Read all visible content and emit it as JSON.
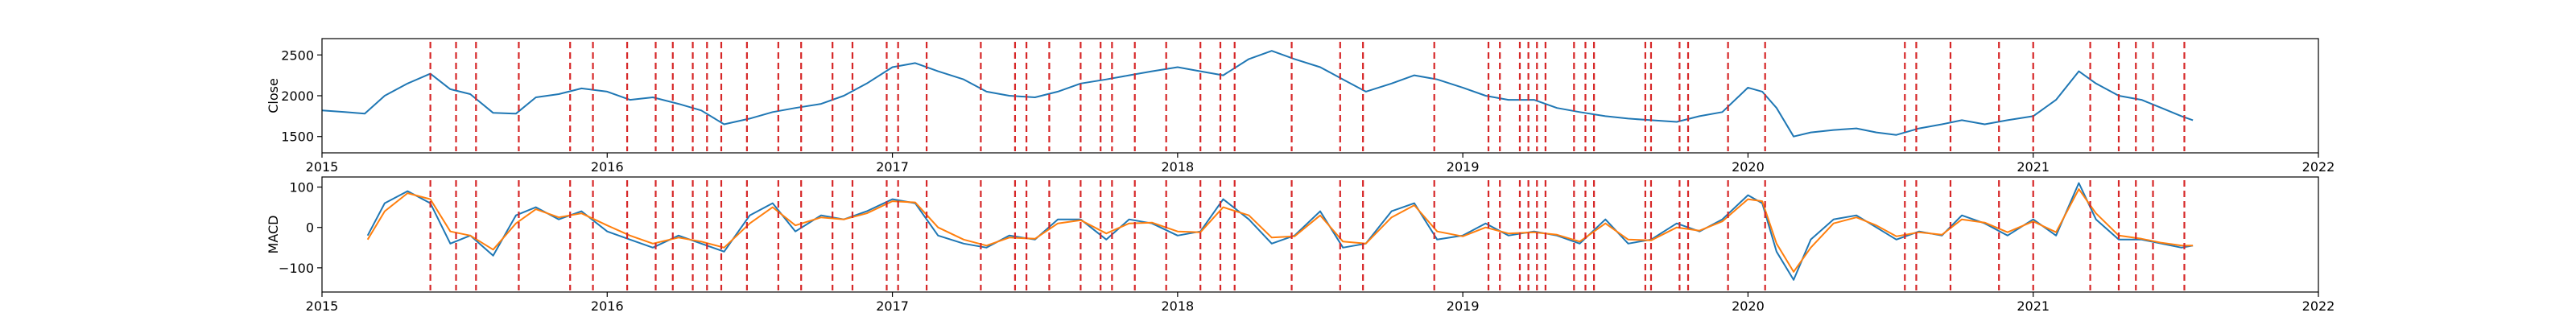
{
  "chart_data": [
    {
      "type": "line",
      "ylabel": "Close",
      "xlim": [
        2015.0,
        2022.0
      ],
      "ylim": [
        1300,
        2700
      ],
      "xticks": [
        2015,
        2016,
        2017,
        2018,
        2019,
        2020,
        2021,
        2022
      ],
      "xtick_labels": [
        "2015",
        "2016",
        "2017",
        "2018",
        "2019",
        "2020",
        "2021",
        "2022"
      ],
      "yticks": [
        1500,
        2000,
        2500
      ],
      "ytick_labels": [
        "1500",
        "2000",
        "2500"
      ],
      "grid": false,
      "series": [
        {
          "color": "#1f77b4",
          "x": [
            2015.0,
            2015.08,
            2015.15,
            2015.22,
            2015.3,
            2015.38,
            2015.45,
            2015.52,
            2015.6,
            2015.68,
            2015.75,
            2015.83,
            2015.91,
            2016.0,
            2016.08,
            2016.16,
            2016.25,
            2016.33,
            2016.41,
            2016.5,
            2016.58,
            2016.66,
            2016.75,
            2016.83,
            2016.91,
            2017.0,
            2017.08,
            2017.16,
            2017.25,
            2017.33,
            2017.41,
            2017.5,
            2017.58,
            2017.66,
            2017.75,
            2017.83,
            2017.91,
            2018.0,
            2018.08,
            2018.16,
            2018.25,
            2018.33,
            2018.41,
            2018.5,
            2018.58,
            2018.66,
            2018.75,
            2018.83,
            2018.91,
            2019.0,
            2019.08,
            2019.16,
            2019.25,
            2019.33,
            2019.41,
            2019.5,
            2019.58,
            2019.66,
            2019.75,
            2019.83,
            2019.91,
            2020.0,
            2020.05,
            2020.1,
            2020.16,
            2020.22,
            2020.3,
            2020.38,
            2020.45,
            2020.52,
            2020.6,
            2020.68,
            2020.75,
            2020.83,
            2020.91,
            2021.0,
            2021.08,
            2021.16,
            2021.22,
            2021.3,
            2021.38,
            2021.45,
            2021.52,
            2021.56
          ],
          "values": [
            1820,
            1800,
            1780,
            2000,
            2150,
            2270,
            2080,
            2020,
            1790,
            1780,
            1980,
            2020,
            2090,
            2050,
            1950,
            1980,
            1900,
            1820,
            1650,
            1720,
            1800,
            1850,
            1900,
            2000,
            2150,
            2350,
            2400,
            2300,
            2200,
            2050,
            2000,
            1980,
            2050,
            2150,
            2200,
            2250,
            2300,
            2350,
            2300,
            2250,
            2450,
            2550,
            2450,
            2350,
            2200,
            2050,
            2150,
            2250,
            2200,
            2100,
            2000,
            1950,
            1950,
            1850,
            1800,
            1750,
            1720,
            1700,
            1680,
            1750,
            1800,
            2100,
            2050,
            1850,
            1500,
            1550,
            1580,
            1600,
            1550,
            1520,
            1600,
            1650,
            1700,
            1650,
            1700,
            1750,
            1950,
            2300,
            2150,
            2000,
            1950,
            1850,
            1750,
            1700
          ]
        }
      ],
      "vlines_color": "#d62728"
    },
    {
      "type": "line",
      "ylabel": "MACD",
      "xlim": [
        2015.0,
        2022.0
      ],
      "ylim": [
        -160,
        125
      ],
      "xticks": [
        2015,
        2016,
        2017,
        2018,
        2019,
        2020,
        2021,
        2022
      ],
      "xtick_labels": [
        "2015",
        "2016",
        "2017",
        "2018",
        "2019",
        "2020",
        "2021",
        "2022"
      ],
      "yticks": [
        -100,
        0,
        100
      ],
      "ytick_labels": [
        "−100",
        "0",
        "100"
      ],
      "grid": false,
      "series": [
        {
          "color": "#1f77b4",
          "x": [
            2015.16,
            2015.22,
            2015.3,
            2015.38,
            2015.45,
            2015.52,
            2015.6,
            2015.68,
            2015.75,
            2015.83,
            2015.91,
            2016.0,
            2016.08,
            2016.16,
            2016.25,
            2016.33,
            2016.41,
            2016.5,
            2016.58,
            2016.66,
            2016.75,
            2016.83,
            2016.91,
            2017.0,
            2017.08,
            2017.16,
            2017.25,
            2017.33,
            2017.41,
            2017.5,
            2017.58,
            2017.66,
            2017.75,
            2017.83,
            2017.91,
            2018.0,
            2018.08,
            2018.16,
            2018.25,
            2018.33,
            2018.41,
            2018.5,
            2018.58,
            2018.66,
            2018.75,
            2018.83,
            2018.91,
            2019.0,
            2019.08,
            2019.16,
            2019.25,
            2019.33,
            2019.41,
            2019.5,
            2019.58,
            2019.66,
            2019.75,
            2019.83,
            2019.91,
            2020.0,
            2020.05,
            2020.1,
            2020.16,
            2020.22,
            2020.3,
            2020.38,
            2020.45,
            2020.52,
            2020.6,
            2020.68,
            2020.75,
            2020.83,
            2020.91,
            2021.0,
            2021.08,
            2021.16,
            2021.22,
            2021.3,
            2021.38,
            2021.45,
            2021.52,
            2021.56
          ],
          "values": [
            -20,
            60,
            90,
            60,
            -40,
            -20,
            -70,
            30,
            50,
            20,
            40,
            -10,
            -30,
            -50,
            -20,
            -40,
            -60,
            30,
            60,
            -10,
            30,
            20,
            40,
            70,
            60,
            -20,
            -40,
            -50,
            -20,
            -30,
            20,
            20,
            -30,
            20,
            10,
            -20,
            -10,
            70,
            20,
            -40,
            -20,
            40,
            -50,
            -40,
            40,
            60,
            -30,
            -20,
            10,
            -20,
            -10,
            -20,
            -40,
            20,
            -40,
            -30,
            10,
            -10,
            20,
            80,
            60,
            -60,
            -130,
            -30,
            20,
            30,
            0,
            -30,
            -10,
            -20,
            30,
            10,
            -20,
            20,
            -20,
            110,
            20,
            -30,
            -30,
            -40,
            -50,
            -45
          ]
        },
        {
          "color": "#ff7f0e",
          "x": [
            2015.16,
            2015.22,
            2015.3,
            2015.38,
            2015.45,
            2015.52,
            2015.6,
            2015.68,
            2015.75,
            2015.83,
            2015.91,
            2016.0,
            2016.08,
            2016.16,
            2016.25,
            2016.33,
            2016.41,
            2016.5,
            2016.58,
            2016.66,
            2016.75,
            2016.83,
            2016.91,
            2017.0,
            2017.08,
            2017.16,
            2017.25,
            2017.33,
            2017.41,
            2017.5,
            2017.58,
            2017.66,
            2017.75,
            2017.83,
            2017.91,
            2018.0,
            2018.08,
            2018.16,
            2018.25,
            2018.33,
            2018.41,
            2018.5,
            2018.58,
            2018.66,
            2018.75,
            2018.83,
            2018.91,
            2019.0,
            2019.08,
            2019.16,
            2019.25,
            2019.33,
            2019.41,
            2019.5,
            2019.58,
            2019.66,
            2019.75,
            2019.83,
            2019.91,
            2020.0,
            2020.05,
            2020.1,
            2020.16,
            2020.22,
            2020.3,
            2020.38,
            2020.45,
            2020.52,
            2020.6,
            2020.68,
            2020.75,
            2020.83,
            2020.91,
            2021.0,
            2021.08,
            2021.16,
            2021.22,
            2021.3,
            2021.38,
            2021.45,
            2021.52,
            2021.56
          ],
          "values": [
            -30,
            40,
            85,
            70,
            -10,
            -20,
            -55,
            10,
            45,
            25,
            35,
            5,
            -20,
            -40,
            -25,
            -35,
            -50,
            10,
            50,
            5,
            25,
            20,
            35,
            65,
            62,
            0,
            -30,
            -45,
            -25,
            -28,
            10,
            18,
            -15,
            10,
            12,
            -10,
            -12,
            50,
            30,
            -25,
            -22,
            30,
            -35,
            -40,
            25,
            55,
            -10,
            -22,
            0,
            -15,
            -12,
            -18,
            -35,
            10,
            -30,
            -32,
            0,
            -8,
            15,
            70,
            65,
            -40,
            -110,
            -50,
            10,
            25,
            5,
            -22,
            -12,
            -18,
            20,
            12,
            -12,
            15,
            -12,
            95,
            35,
            -20,
            -28,
            -38,
            -45,
            -45
          ]
        }
      ],
      "vlines_color": "#d62728"
    }
  ],
  "vlines": [
    2015.38,
    2015.47,
    2015.54,
    2015.69,
    2015.87,
    2015.95,
    2016.07,
    2016.17,
    2016.23,
    2016.3,
    2016.35,
    2016.4,
    2016.49,
    2016.6,
    2016.68,
    2016.79,
    2016.86,
    2016.98,
    2017.02,
    2017.12,
    2017.31,
    2017.43,
    2017.47,
    2017.55,
    2017.66,
    2017.73,
    2017.77,
    2017.85,
    2017.96,
    2018.08,
    2018.15,
    2018.2,
    2018.4,
    2018.57,
    2018.65,
    2018.9,
    2019.09,
    2019.13,
    2019.2,
    2019.23,
    2019.26,
    2019.29,
    2019.39,
    2019.43,
    2019.46,
    2019.64,
    2019.66,
    2019.76,
    2019.79,
    2019.93,
    2020.06,
    2020.55,
    2020.59,
    2020.71,
    2020.88,
    2021.0,
    2021.2,
    2021.3,
    2021.36,
    2021.42,
    2021.53
  ]
}
